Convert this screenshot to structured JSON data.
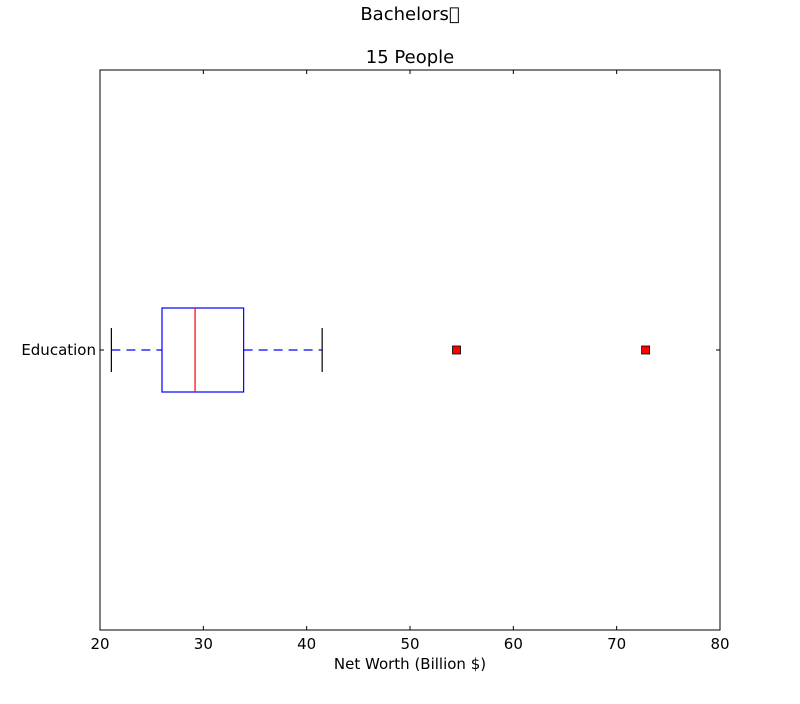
{
  "chart_data": {
    "type": "boxplot",
    "orientation": "horizontal",
    "title": "Bachelors\u0000",
    "subtitle": "15 People",
    "xlabel": "Net Worth (Billion $)",
    "ylabel": "",
    "xlim": [
      20,
      80
    ],
    "xticks": [
      20,
      30,
      40,
      50,
      60,
      70,
      80
    ],
    "categories": [
      "Education"
    ],
    "boxes": [
      {
        "category": "Education",
        "whisker_low": 21.1,
        "q1": 26.0,
        "median": 29.2,
        "q3": 33.9,
        "whisker_high": 41.5,
        "outliers": [
          54.5,
          72.8
        ]
      }
    ],
    "grid": false,
    "colors": {
      "box": "#0000ff",
      "median": "#ff0000",
      "whisker": "#0000ff",
      "cap": "#000000",
      "outlier_fill": "#ff0000",
      "outlier_edge": "#000000",
      "axes": "#000000"
    }
  }
}
